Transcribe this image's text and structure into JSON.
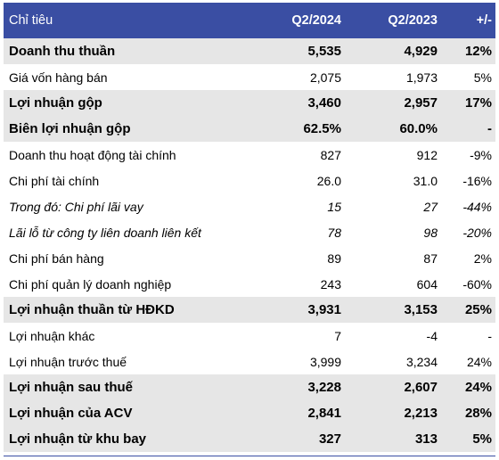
{
  "header": {
    "label": "Chỉ tiêu",
    "col1": "Q2/2024",
    "col2": "Q2/2023",
    "col3": "+/-"
  },
  "rows": [
    {
      "label": "Doanh thu thuần",
      "q2024": "5,535",
      "q2023": "4,929",
      "change": "12%",
      "style": "bold shade"
    },
    {
      "label": "Giá vốn hàng bán",
      "q2024": "2,075",
      "q2023": "1,973",
      "change": "5%",
      "style": ""
    },
    {
      "label": "Lợi nhuận gộp",
      "q2024": "3,460",
      "q2023": "2,957",
      "change": "17%",
      "style": "bold shade"
    },
    {
      "label": "Biên lợi nhuận gộp",
      "q2024": "62.5%",
      "q2023": "60.0%",
      "change": "-",
      "style": "bold shade"
    },
    {
      "label": "Doanh thu hoạt động tài chính",
      "q2024": "827",
      "q2023": "912",
      "change": "-9%",
      "style": ""
    },
    {
      "label": "Chi phí tài chính",
      "q2024": "26.0",
      "q2023": "31.0",
      "change": "-16%",
      "style": ""
    },
    {
      "label": "Trong đó: Chi phí lãi vay",
      "q2024": "15",
      "q2023": "27",
      "change": "-44%",
      "style": "italic"
    },
    {
      "label": "Lãi lỗ từ công ty liên doanh liên kết",
      "q2024": "78",
      "q2023": "98",
      "change": "-20%",
      "style": "italic"
    },
    {
      "label": "Chi phí bán hàng",
      "q2024": "89",
      "q2023": "87",
      "change": "2%",
      "style": ""
    },
    {
      "label": "Chi phí quản lý doanh nghiệp",
      "q2024": "243",
      "q2023": "604",
      "change": "-60%",
      "style": ""
    },
    {
      "label": "Lợi nhuận thuần từ HĐKD",
      "q2024": "3,931",
      "q2023": "3,153",
      "change": "25%",
      "style": "bold shade"
    },
    {
      "label": "Lợi nhuận khác",
      "q2024": "7",
      "q2023": "-4",
      "change": "-",
      "style": ""
    },
    {
      "label": "Lợi nhuận trước thuế",
      "q2024": "3,999",
      "q2023": "3,234",
      "change": "24%",
      "style": ""
    },
    {
      "label": "Lợi nhuận sau thuế",
      "q2024": "3,228",
      "q2023": "2,607",
      "change": "24%",
      "style": "bold shade"
    },
    {
      "label": "Lợi nhuận của ACV",
      "q2024": "2,841",
      "q2023": "2,213",
      "change": "28%",
      "style": "bold shade"
    },
    {
      "label": "Lợi nhuận từ khu bay",
      "q2024": "327",
      "q2023": "313",
      "change": "5%",
      "style": "bold shade"
    }
  ]
}
